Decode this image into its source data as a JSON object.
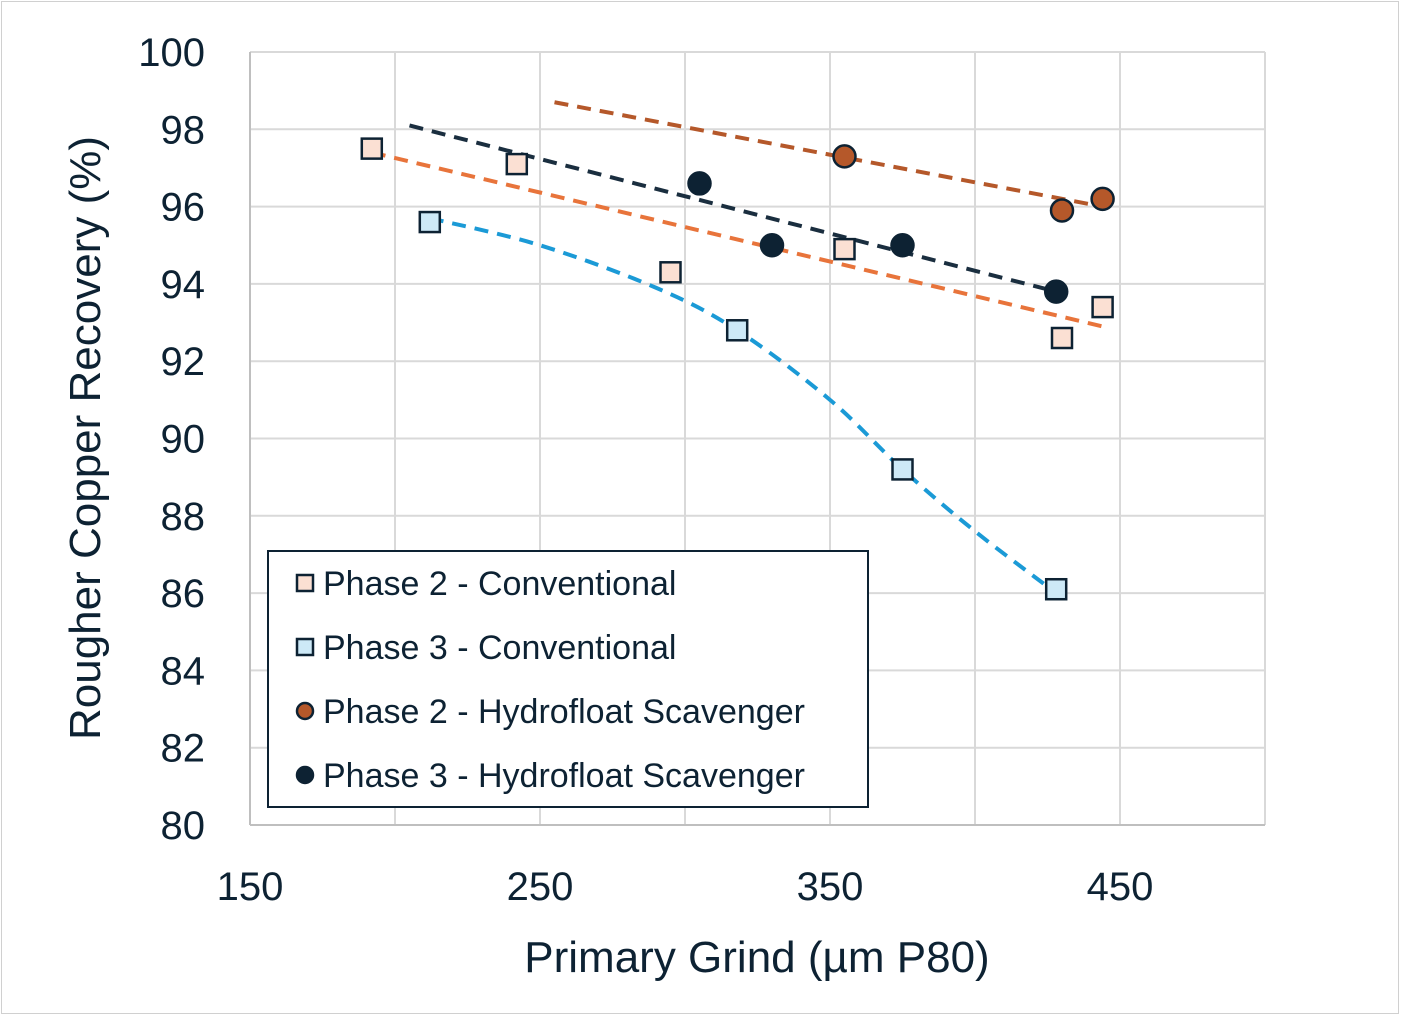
{
  "chart_data": {
    "type": "scatter",
    "xlabel": "Primary Grind (µm P80)",
    "ylabel": "Rougher Copper Recovery (%)",
    "xlim": [
      150,
      500
    ],
    "ylim": [
      80,
      100
    ],
    "x_ticks": [
      "150",
      "250",
      "350",
      "450"
    ],
    "y_ticks": [
      "80",
      "82",
      "84",
      "86",
      "88",
      "90",
      "92",
      "94",
      "96",
      "98",
      "100"
    ],
    "grid": true,
    "legend_position": "bottom-left",
    "series": [
      {
        "name": "Phase 2 - Conventional",
        "marker": "square",
        "fill": "#fbe0d3",
        "trend_color": "#e8743b",
        "trend": "linear",
        "points": [
          [
            192,
            97.5
          ],
          [
            242,
            97.1
          ],
          [
            295,
            94.3
          ],
          [
            355,
            94.9
          ],
          [
            430,
            92.6
          ],
          [
            444,
            93.4
          ]
        ],
        "trend_points": [
          [
            192,
            97.4
          ],
          [
            444,
            92.9
          ]
        ]
      },
      {
        "name": "Phase 3 - Conventional",
        "marker": "square",
        "fill": "#cde9f7",
        "trend_color": "#1b9ad6",
        "trend": "curve",
        "points": [
          [
            212,
            95.6
          ],
          [
            318,
            92.8
          ],
          [
            375,
            89.2
          ],
          [
            428,
            86.1
          ]
        ],
        "trend_points": [
          [
            212,
            95.7
          ],
          [
            250,
            95.0
          ],
          [
            290,
            93.9
          ],
          [
            318,
            92.8
          ],
          [
            350,
            91.0
          ],
          [
            375,
            89.2
          ],
          [
            400,
            87.6
          ],
          [
            428,
            86.0
          ]
        ]
      },
      {
        "name": "Phase 2 - Hydrofloat Scavenger",
        "marker": "circle",
        "fill": "#b5582a",
        "trend_color": "#b5582a",
        "trend": "linear",
        "points": [
          [
            355,
            97.3
          ],
          [
            430,
            95.9
          ],
          [
            444,
            96.2
          ]
        ],
        "trend_points": [
          [
            255,
            98.7
          ],
          [
            444,
            96.0
          ]
        ]
      },
      {
        "name": "Phase 3 - Hydrofloat Scavenger",
        "marker": "circle",
        "fill": "#0d2233",
        "trend_color": "#1a2e3f",
        "trend": "linear",
        "points": [
          [
            305,
            96.6
          ],
          [
            330,
            95.0
          ],
          [
            375,
            95.0
          ],
          [
            428,
            93.8
          ]
        ],
        "trend_points": [
          [
            205,
            98.1
          ],
          [
            428,
            93.8
          ]
        ]
      }
    ]
  }
}
